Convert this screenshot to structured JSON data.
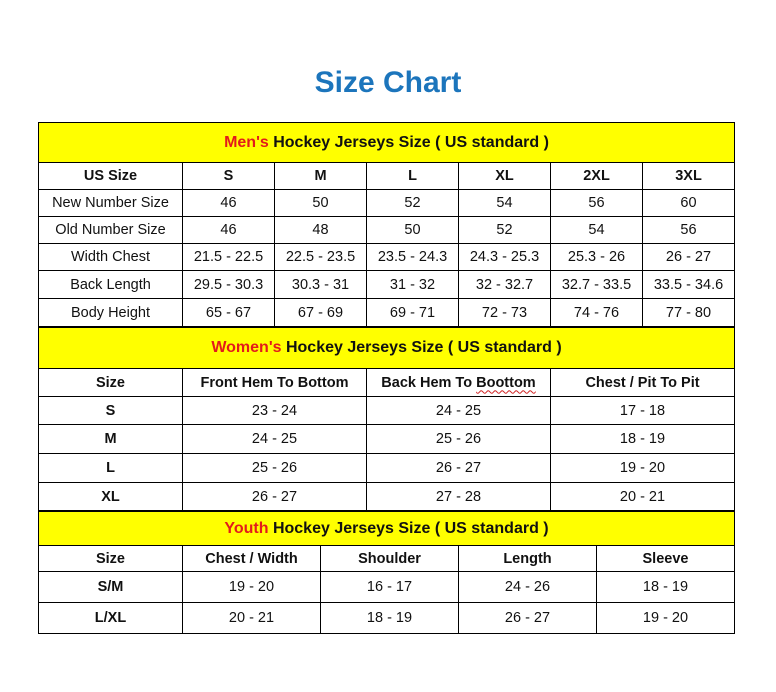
{
  "title": "Size Chart",
  "colors": {
    "title": "#1c75bc",
    "band": "#ffff00",
    "highlight": "#e31b1b"
  },
  "mens": {
    "label_highlight": "Men's",
    "label_rest": " Hockey Jerseys Size ( US standard )",
    "columns": [
      "US Size",
      "S",
      "M",
      "L",
      "XL",
      "2XL",
      "3XL"
    ],
    "rows": [
      [
        "New Number Size",
        "46",
        "50",
        "52",
        "54",
        "56",
        "60"
      ],
      [
        "Old Number Size",
        "46",
        "48",
        "50",
        "52",
        "54",
        "56"
      ],
      [
        "Width Chest",
        "21.5 - 22.5",
        "22.5 - 23.5",
        "23.5 - 24.3",
        "24.3 - 25.3",
        "25.3 - 26",
        "26 - 27"
      ],
      [
        "Back Length",
        "29.5 - 30.3",
        "30.3 - 31",
        "31 - 32",
        "32 - 32.7",
        "32.7 - 33.5",
        "33.5 - 34.6"
      ],
      [
        "Body Height",
        "65 - 67",
        "67 - 69",
        "69 - 71",
        "72 - 73",
        "74 - 76",
        "77 - 80"
      ]
    ]
  },
  "womens": {
    "label_highlight": "Women's",
    "label_rest": " Hockey Jerseys Size ( US standard )",
    "columns": [
      "Size",
      "Front Hem To Bottom",
      "Back Hem To ",
      "Chest / Pit To Pit"
    ],
    "misspelled_word": "Boottom",
    "rows": [
      [
        "S",
        "23 - 24",
        "24 - 25",
        "17 - 18"
      ],
      [
        "M",
        "24 - 25",
        "25 - 26",
        "18 - 19"
      ],
      [
        "L",
        "25 - 26",
        "26 - 27",
        "19 - 20"
      ],
      [
        "XL",
        "26 - 27",
        "27 - 28",
        "20 - 21"
      ]
    ]
  },
  "youth": {
    "label_highlight": "Youth",
    "label_rest": " Hockey Jerseys Size ( US standard )",
    "columns": [
      "Size",
      "Chest / Width",
      "Shoulder",
      "Length",
      "Sleeve"
    ],
    "rows": [
      [
        "S/M",
        "19 - 20",
        "16 - 17",
        "24 - 26",
        "18 - 19"
      ],
      [
        "L/XL",
        "20 - 21",
        "18 - 19",
        "26 - 27",
        "19 - 20"
      ]
    ]
  }
}
